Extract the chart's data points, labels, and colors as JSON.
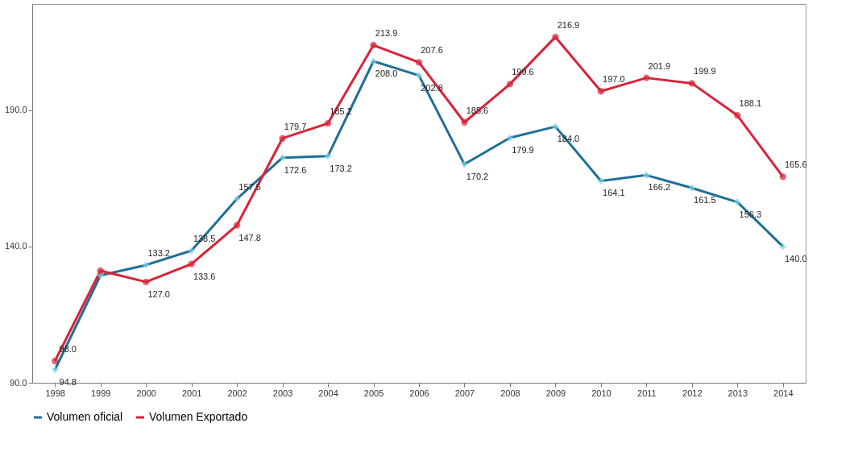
{
  "chart_data": {
    "type": "line",
    "categories": [
      "1998",
      "1999",
      "2000",
      "2001",
      "2002",
      "2003",
      "2004",
      "2005",
      "2006",
      "2007",
      "2008",
      "2009",
      "2010",
      "2011",
      "2012",
      "2013",
      "2014"
    ],
    "ylim": [
      90,
      229
    ],
    "yticks": [
      {
        "value": 90,
        "label": "90.0"
      },
      {
        "value": 140,
        "label": "140.0"
      },
      {
        "value": 190,
        "label": "190.0"
      }
    ],
    "grid": false,
    "legend": "bottom",
    "line_style": "solid",
    "series": [
      {
        "name": "Volumen oficial",
        "color": "#1f6f96",
        "marker": "cross",
        "values": [
          94.8,
          129.4,
          133.2,
          138.5,
          157.5,
          172.6,
          173.2,
          208.0,
          202.8,
          170.2,
          179.9,
          184.0,
          164.1,
          166.2,
          161.5,
          156.3,
          140.0
        ],
        "value_labels": [
          "94.8",
          null,
          "133.2",
          "138.5",
          "157.5",
          "172.6",
          "173.2",
          "208.0",
          "202.8",
          "170.2",
          "179.9",
          "184.0",
          "164.1",
          "166.2",
          "161.5",
          "156.3",
          "140.0"
        ]
      },
      {
        "name": "Volumen Exportado",
        "color": "#d9233a",
        "marker": "circle",
        "values": [
          98.0,
          131.1,
          127.0,
          133.6,
          147.8,
          179.7,
          185.2,
          213.9,
          207.6,
          185.6,
          199.6,
          216.9,
          197.0,
          201.9,
          199.9,
          188.1,
          165.6
        ],
        "value_labels": [
          "98.0",
          null,
          "127.0",
          "133.6",
          "147.8",
          "179.7",
          "185.2",
          "213.9",
          "207.6",
          "185.6",
          "199.6",
          "216.9",
          "197.0",
          "201.9",
          "199.9",
          "188.1",
          "165.6"
        ]
      }
    ]
  }
}
